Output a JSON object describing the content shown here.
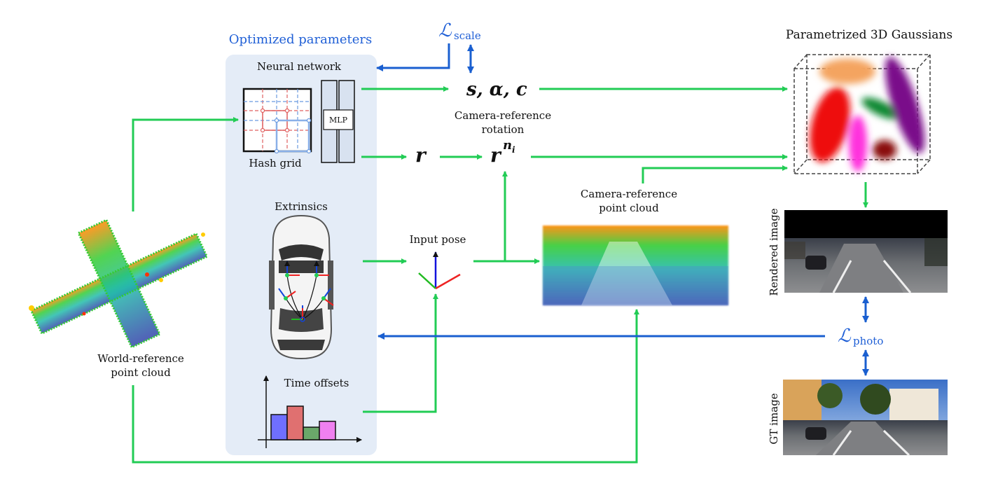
{
  "labels": {
    "optimized_parameters": "Optimized parameters",
    "neural_network": "Neural network",
    "hash_grid": "Hash grid",
    "mlp": "MLP",
    "extrinsics": "Extrinsics",
    "time_offsets": "Time offsets",
    "world_ref_line1": "World-reference",
    "world_ref_line2": "point cloud",
    "input_pose": "Input pose",
    "cam_rot_line1": "Camera-reference",
    "cam_rot_line2": "rotation",
    "cam_pc_line1": "Camera-reference",
    "cam_pc_line2": "point cloud",
    "gaussians_title": "Parametrized 3D Gaussians",
    "rendered_image": "Rendered image",
    "gt_image": "GT image"
  },
  "math": {
    "loss_symbol": "ℒ",
    "loss_scale_sub": "scale",
    "loss_photo_sub": "photo",
    "s_alpha_c": "s, α, c",
    "r": "r",
    "r_base": "r",
    "r_sup": "n",
    "r_sup_sub": "i"
  },
  "colors": {
    "panel_bg": "#e4ecf7",
    "flow_green": "#22cc55",
    "loss_blue": "#1a5fd0",
    "bar_colors": [
      "#6f6fff",
      "#e07070",
      "#6aa86a",
      "#f080f0"
    ],
    "gaussian_colors": [
      "#f4a460",
      "#ee1111",
      "#ff33dd",
      "#118833",
      "#7a0a8a",
      "#8a0a0a"
    ]
  },
  "time_offsets_bars": [
    0.6,
    0.8,
    0.3,
    0.44
  ]
}
